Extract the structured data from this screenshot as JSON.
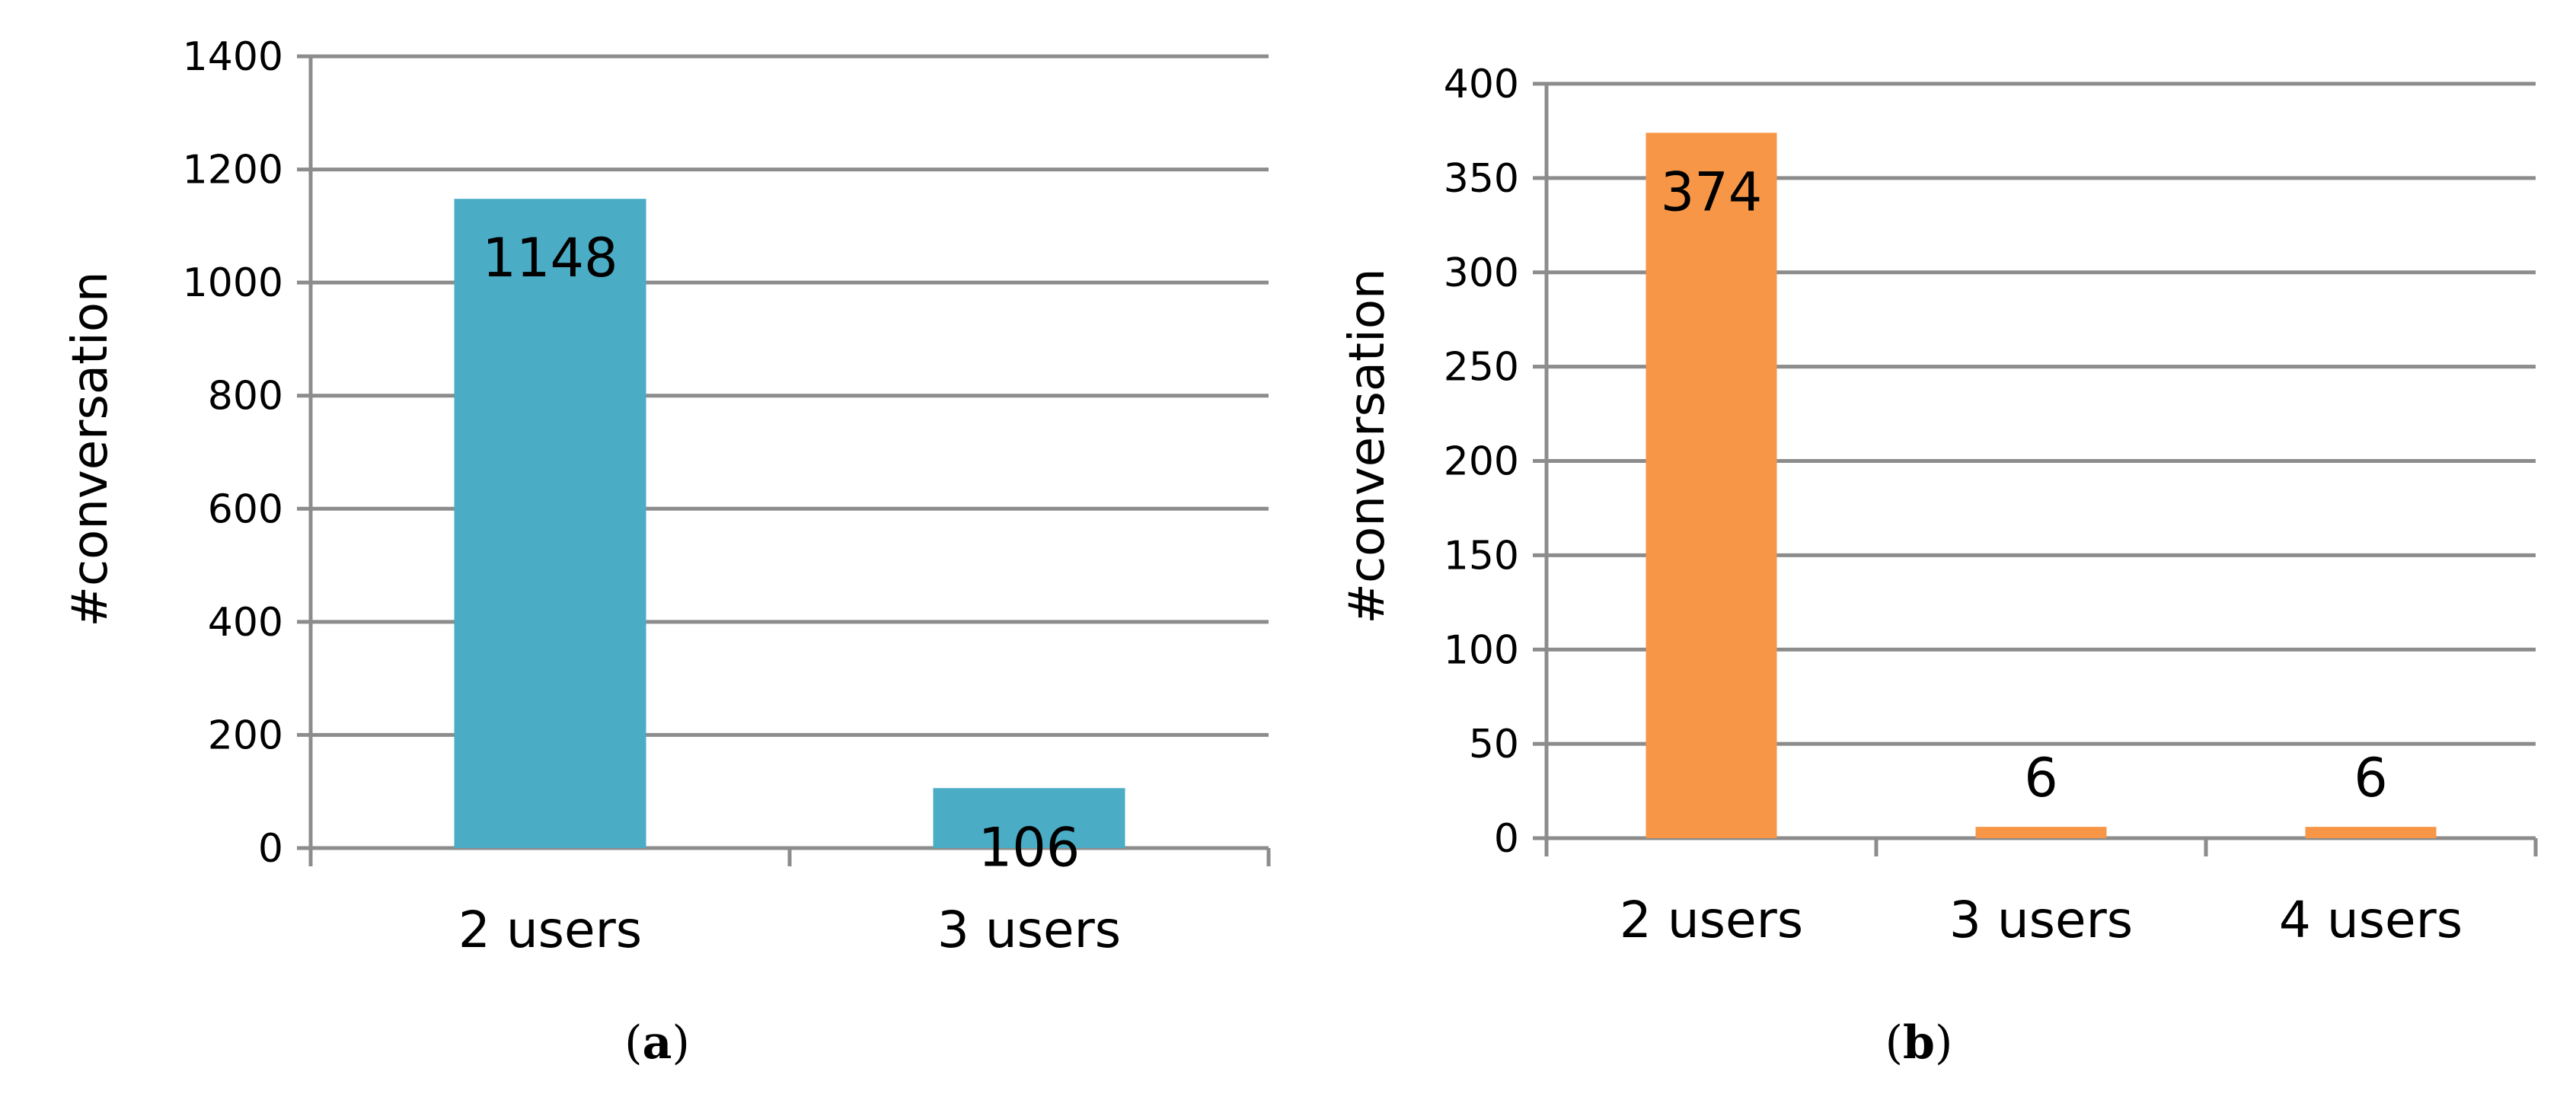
{
  "chart_data": [
    {
      "type": "bar",
      "categories": [
        "2 users",
        "3 users"
      ],
      "values": [
        1148,
        106
      ],
      "data_labels": [
        "1148",
        "106"
      ],
      "ylabel": "#conversation",
      "xlabel": "",
      "title": "",
      "ylim": [
        0,
        1400
      ],
      "yticks": [
        0,
        200,
        400,
        600,
        800,
        1000,
        1200,
        1400
      ],
      "grid": true,
      "color": "#4BACC6",
      "caption": {
        "open": "(",
        "letter": "a",
        "close": ")"
      }
    },
    {
      "type": "bar",
      "categories": [
        "2 users",
        "3 users",
        "4 users"
      ],
      "values": [
        374,
        6,
        6
      ],
      "data_labels": [
        "374",
        "6",
        "6"
      ],
      "ylabel": "#conversation",
      "xlabel": "",
      "title": "",
      "ylim": [
        0,
        400
      ],
      "yticks": [
        0,
        50,
        100,
        150,
        200,
        250,
        300,
        350,
        400
      ],
      "grid": true,
      "color": "#F79646",
      "caption": {
        "open": "(",
        "letter": "b",
        "close": ")"
      }
    }
  ]
}
